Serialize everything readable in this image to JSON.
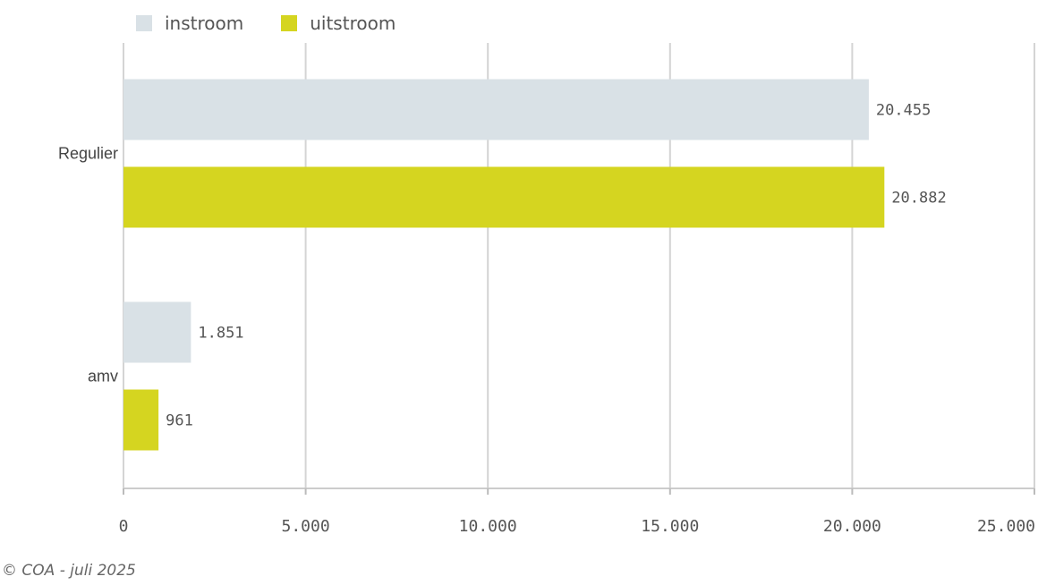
{
  "legend": {
    "items": [
      {
        "label": "instroom",
        "color": "#d9e1e6"
      },
      {
        "label": "uitstroom",
        "color": "#d5d520"
      }
    ]
  },
  "footer": {
    "text": "© COA - juli 2025"
  },
  "chart_data": {
    "type": "bar",
    "orientation": "horizontal",
    "categories": [
      "Regulier",
      "amv"
    ],
    "series": [
      {
        "name": "instroom",
        "values": [
          20455,
          1851
        ],
        "labels": [
          "20.455",
          "1.851"
        ],
        "color": "#d9e1e6"
      },
      {
        "name": "uitstroom",
        "values": [
          20882,
          961
        ],
        "labels": [
          "20.882",
          "961"
        ],
        "color": "#d5d520"
      }
    ],
    "xlim": [
      0,
      25000
    ],
    "xticks": [
      0,
      5000,
      10000,
      15000,
      20000,
      25000
    ],
    "xtick_labels": [
      "0",
      "5.000",
      "10.000",
      "15.000",
      "20.000",
      "25.000"
    ],
    "grid": true,
    "legend_position": "top-left"
  }
}
